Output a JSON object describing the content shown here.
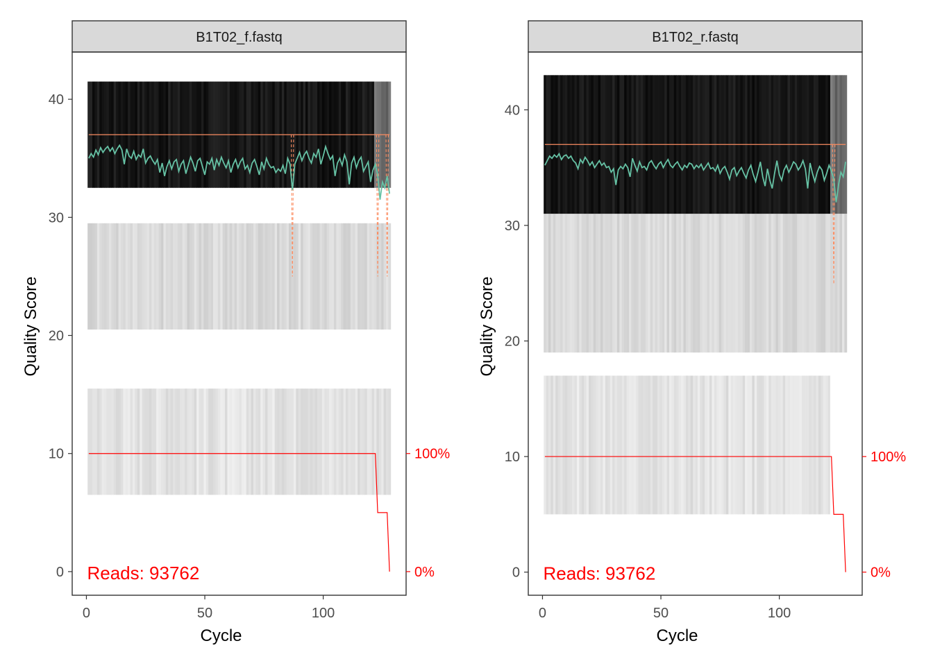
{
  "chart_data": [
    {
      "type": "heatmap",
      "strip_title": "B1T02_f.fastq",
      "xlabel": "Cycle",
      "ylabel": "Quality Score",
      "x_ticks": [
        0,
        50,
        100
      ],
      "x_tick_labels": [
        "0",
        "50",
        "100"
      ],
      "xlim": [
        -6,
        135
      ],
      "y_ticks": [
        0,
        10,
        20,
        30,
        40
      ],
      "y_tick_labels": [
        "0",
        "10",
        "20",
        "30",
        "40"
      ],
      "ylim": [
        -2,
        44
      ],
      "right_axis_ticks": [
        0,
        10
      ],
      "right_axis_labels": [
        "0%",
        "100%"
      ],
      "cycles": [
        1,
        128
      ],
      "quality_bands": [
        {
          "ymin": 32.5,
          "ymax": 41.5,
          "tone": "dark"
        },
        {
          "ymin": 20.5,
          "ymax": 29.5,
          "tone": "light"
        },
        {
          "ymin": 6.5,
          "ymax": 15.5,
          "tone": "lighter"
        }
      ],
      "mean_quality": [
        35.0,
        35.4,
        35.1,
        35.7,
        35.3,
        35.9,
        35.5,
        35.8,
        36.0,
        35.6,
        35.9,
        35.4,
        35.8,
        36.1,
        35.7,
        34.5,
        35.8,
        35.2,
        35.0,
        35.6,
        34.9,
        35.3,
        35.1,
        35.8,
        34.6,
        35.0,
        35.2,
        34.8,
        34.5,
        34.9,
        33.8,
        34.6,
        33.5,
        34.3,
        34.8,
        34.1,
        34.7,
        34.9,
        33.9,
        34.5,
        34.8,
        33.7,
        34.4,
        35.1,
        34.6,
        33.9,
        34.8,
        35.0,
        34.3,
        33.6,
        34.7,
        34.5,
        35.0,
        34.0,
        34.9,
        34.4,
        35.1,
        34.6,
        34.2,
        34.8,
        33.8,
        34.5,
        34.9,
        34.2,
        34.7,
        35.0,
        34.1,
        34.4,
        33.8,
        34.6,
        34.9,
        34.3,
        33.6,
        34.7,
        34.1,
        35.0,
        34.5,
        34.2,
        34.3,
        33.8,
        34.1,
        33.9,
        34.4,
        33.7,
        35.0,
        34.5,
        32.3,
        34.5,
        35.0,
        35.5,
        34.8,
        35.3,
        35.6,
        35.0,
        34.6,
        35.4,
        35.1,
        35.8,
        34.5,
        35.2,
        36.0,
        35.4,
        34.9,
        35.2,
        33.5,
        34.6,
        35.0,
        34.4,
        35.3,
        34.7,
        32.8,
        34.6,
        35.1,
        34.2,
        34.8,
        35.1,
        33.9,
        34.3,
        34.7,
        33.0,
        34.0,
        34.5,
        33.6,
        31.5,
        33.0,
        32.5,
        33.5,
        32.0
      ],
      "median_quality": [
        37,
        37
      ],
      "median_quality_cycles": [
        1,
        128
      ],
      "quartile_drops": [
        {
          "cycle": 87,
          "low": 25.0
        },
        {
          "cycle": 123,
          "low": 25.0
        },
        {
          "cycle": 127,
          "low": 25.0
        }
      ],
      "reads_fraction": {
        "cycles": [
          1,
          122,
          123,
          127,
          128
        ],
        "values": [
          1.0,
          1.0,
          0.5,
          0.5,
          0.0
        ]
      },
      "reads_label": "Reads:  93762",
      "line_colors": {
        "mean": "#66c2a5",
        "median": "#fc8d62",
        "quartile": "#fc8d62",
        "reads": "#ff0000"
      }
    },
    {
      "type": "heatmap",
      "strip_title": "B1T02_r.fastq",
      "xlabel": "Cycle",
      "ylabel": "Quality Score",
      "x_ticks": [
        0,
        50,
        100
      ],
      "x_tick_labels": [
        "0",
        "50",
        "100"
      ],
      "xlim": [
        -6,
        135
      ],
      "y_ticks": [
        0,
        10,
        20,
        30,
        40
      ],
      "y_tick_labels": [
        "0",
        "10",
        "20",
        "30",
        "40"
      ],
      "ylim": [
        -2,
        45
      ],
      "right_axis_ticks": [
        0,
        10
      ],
      "right_axis_labels": [
        "0%",
        "100%"
      ],
      "cycles": [
        1,
        128
      ],
      "quality_bands": [
        {
          "ymin": 31.0,
          "ymax": 43.0,
          "tone": "dark"
        },
        {
          "ymin": 19.0,
          "ymax": 31.0,
          "tone": "light"
        },
        {
          "ymin": 5.0,
          "ymax": 17.0,
          "tone": "lighter"
        }
      ],
      "mean_quality": [
        35.2,
        35.6,
        36.0,
        35.8,
        36.1,
        35.9,
        36.2,
        35.7,
        36.0,
        36.1,
        35.8,
        36.0,
        35.6,
        35.4,
        34.9,
        35.7,
        35.4,
        35.9,
        35.6,
        35.2,
        35.5,
        35.0,
        35.3,
        35.6,
        35.2,
        35.4,
        35.0,
        35.1,
        34.6,
        34.9,
        33.5,
        34.8,
        35.1,
        34.9,
        35.3,
        35.0,
        34.2,
        35.8,
        35.2,
        34.7,
        35.5,
        35.0,
        35.1,
        34.8,
        35.4,
        35.6,
        35.2,
        34.9,
        35.3,
        35.5,
        35.0,
        35.4,
        35.7,
        35.2,
        35.0,
        35.3,
        35.5,
        35.1,
        34.8,
        35.2,
        35.0,
        35.4,
        35.3,
        34.9,
        35.2,
        35.0,
        35.3,
        34.8,
        35.1,
        35.4,
        34.9,
        35.0,
        34.7,
        35.2,
        34.5,
        34.9,
        35.1,
        34.6,
        34.0,
        34.8,
        35.0,
        34.3,
        34.7,
        35.0,
        34.5,
        34.1,
        34.8,
        35.2,
        34.4,
        33.8,
        34.6,
        35.5,
        34.2,
        33.4,
        34.9,
        33.9,
        33.2,
        34.5,
        35.6,
        34.4,
        33.9,
        34.8,
        35.2,
        34.6,
        35.0,
        35.5,
        35.3,
        34.8,
        35.1,
        35.6,
        34.9,
        33.2,
        35.4,
        34.5,
        33.8,
        34.6,
        35.1,
        34.8,
        33.9,
        34.5,
        35.2,
        34.7,
        34.0,
        32.0,
        33.5,
        34.6,
        34.2,
        35.5
      ],
      "median_quality": [
        37,
        37
      ],
      "median_quality_cycles": [
        1,
        128
      ],
      "quartile_drops": [
        {
          "cycle": 123,
          "low": 25.0
        }
      ],
      "reads_fraction": {
        "cycles": [
          1,
          122,
          123,
          127,
          128
        ],
        "values": [
          1.0,
          1.0,
          0.5,
          0.5,
          0.0
        ]
      },
      "reads_label": "Reads:  93762",
      "line_colors": {
        "mean": "#66c2a5",
        "median": "#fc8d62",
        "quartile": "#fc8d62",
        "reads": "#ff0000"
      }
    }
  ]
}
